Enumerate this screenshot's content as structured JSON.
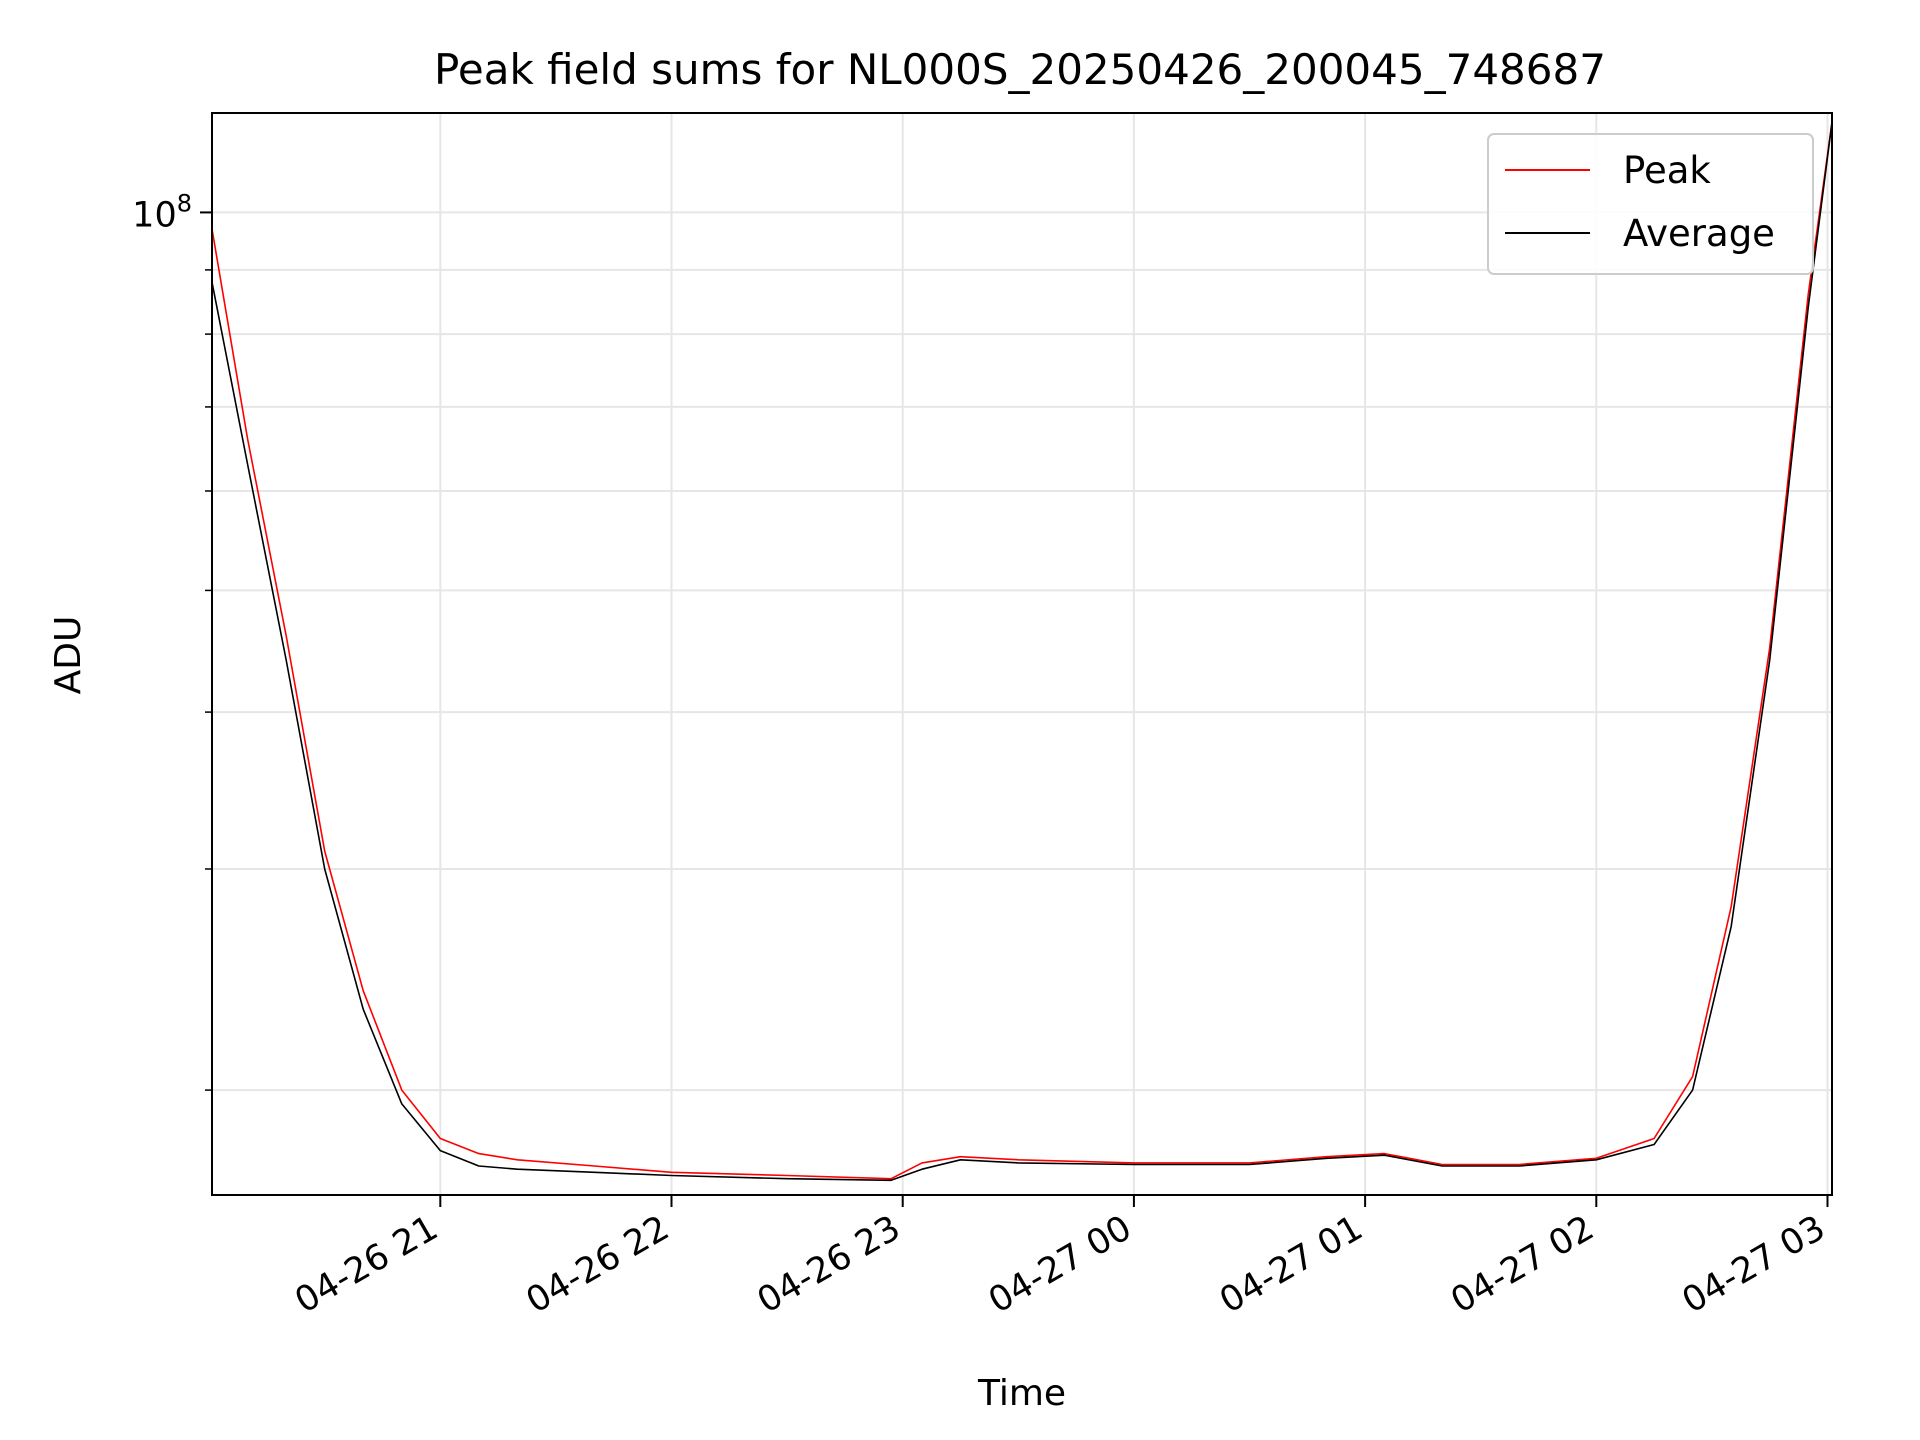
{
  "chart_data": {
    "type": "line",
    "title": "Peak field sums for NL000S_20250426_200045_748687",
    "xlabel": "Time",
    "ylabel": "ADU",
    "y_scale": "log",
    "x_range": [
      "2025-04-26T20:00:45",
      "2025-04-27T03:01:10"
    ],
    "ylim": [
      16500000,
      120000000
    ],
    "x_ticks": [
      {
        "value": "2025-04-26T21:00:00",
        "label": "04-26 21"
      },
      {
        "value": "2025-04-26T22:00:00",
        "label": "04-26 22"
      },
      {
        "value": "2025-04-26T23:00:00",
        "label": "04-26 23"
      },
      {
        "value": "2025-04-27T00:00:00",
        "label": "04-27 00"
      },
      {
        "value": "2025-04-27T01:00:00",
        "label": "04-27 01"
      },
      {
        "value": "2025-04-27T02:00:00",
        "label": "04-27 02"
      },
      {
        "value": "2025-04-27T03:00:00",
        "label": "04-27 03"
      }
    ],
    "y_ticks_major": [
      {
        "value": 100000000,
        "base": "10",
        "exponent": "8"
      }
    ],
    "y_ticks_minor": [
      20000000,
      30000000,
      40000000,
      50000000,
      60000000,
      70000000,
      80000000,
      90000000
    ],
    "grid": true,
    "legend_position": "top-right",
    "series": [
      {
        "name": "Peak",
        "color": "#ff0000",
        "points": [
          [
            "2025-04-26T20:00:45",
            97000000
          ],
          [
            "2025-04-26T20:10:00",
            66000000
          ],
          [
            "2025-04-26T20:20:00",
            46000000
          ],
          [
            "2025-04-26T20:30:00",
            31000000
          ],
          [
            "2025-04-26T20:40:00",
            24000000
          ],
          [
            "2025-04-26T20:50:00",
            20000000
          ],
          [
            "2025-04-26T21:00:00",
            18300000
          ],
          [
            "2025-04-26T21:10:00",
            17800000
          ],
          [
            "2025-04-26T21:20:00",
            17600000
          ],
          [
            "2025-04-26T21:40:00",
            17400000
          ],
          [
            "2025-04-26T22:00:00",
            17200000
          ],
          [
            "2025-04-26T22:30:00",
            17100000
          ],
          [
            "2025-04-26T22:57:00",
            17000000
          ],
          [
            "2025-04-26T23:05:00",
            17500000
          ],
          [
            "2025-04-26T23:15:00",
            17700000
          ],
          [
            "2025-04-26T23:30:00",
            17600000
          ],
          [
            "2025-04-27T00:00:00",
            17500000
          ],
          [
            "2025-04-27T00:30:00",
            17500000
          ],
          [
            "2025-04-27T00:50:00",
            17700000
          ],
          [
            "2025-04-27T01:05:00",
            17800000
          ],
          [
            "2025-04-27T01:20:00",
            17450000
          ],
          [
            "2025-04-27T01:40:00",
            17450000
          ],
          [
            "2025-04-27T02:00:00",
            17650000
          ],
          [
            "2025-04-27T02:15:00",
            18300000
          ],
          [
            "2025-04-27T02:25:00",
            20500000
          ],
          [
            "2025-04-27T02:35:00",
            28000000
          ],
          [
            "2025-04-27T02:45:00",
            45000000
          ],
          [
            "2025-04-27T02:55:00",
            86000000
          ],
          [
            "2025-04-27T03:01:10",
            118000000
          ]
        ]
      },
      {
        "name": "Average",
        "color": "#000000",
        "points": [
          [
            "2025-04-26T20:00:45",
            88000000
          ],
          [
            "2025-04-26T20:10:00",
            63000000
          ],
          [
            "2025-04-26T20:20:00",
            44000000
          ],
          [
            "2025-04-26T20:30:00",
            30000000
          ],
          [
            "2025-04-26T20:40:00",
            23200000
          ],
          [
            "2025-04-26T20:50:00",
            19500000
          ],
          [
            "2025-04-26T21:00:00",
            17900000
          ],
          [
            "2025-04-26T21:10:00",
            17400000
          ],
          [
            "2025-04-26T21:20:00",
            17300000
          ],
          [
            "2025-04-26T21:40:00",
            17200000
          ],
          [
            "2025-04-26T22:00:00",
            17100000
          ],
          [
            "2025-04-26T22:30:00",
            17000000
          ],
          [
            "2025-04-26T22:57:00",
            16950000
          ],
          [
            "2025-04-26T23:05:00",
            17300000
          ],
          [
            "2025-04-26T23:15:00",
            17600000
          ],
          [
            "2025-04-26T23:30:00",
            17500000
          ],
          [
            "2025-04-27T00:00:00",
            17450000
          ],
          [
            "2025-04-27T00:30:00",
            17450000
          ],
          [
            "2025-04-27T00:50:00",
            17650000
          ],
          [
            "2025-04-27T01:05:00",
            17750000
          ],
          [
            "2025-04-27T01:20:00",
            17400000
          ],
          [
            "2025-04-27T01:40:00",
            17400000
          ],
          [
            "2025-04-27T02:00:00",
            17600000
          ],
          [
            "2025-04-27T02:15:00",
            18100000
          ],
          [
            "2025-04-27T02:25:00",
            20000000
          ],
          [
            "2025-04-27T02:35:00",
            27000000
          ],
          [
            "2025-04-27T02:45:00",
            44000000
          ],
          [
            "2025-04-27T02:55:00",
            84000000
          ],
          [
            "2025-04-27T03:01:10",
            118000000
          ]
        ]
      }
    ]
  }
}
